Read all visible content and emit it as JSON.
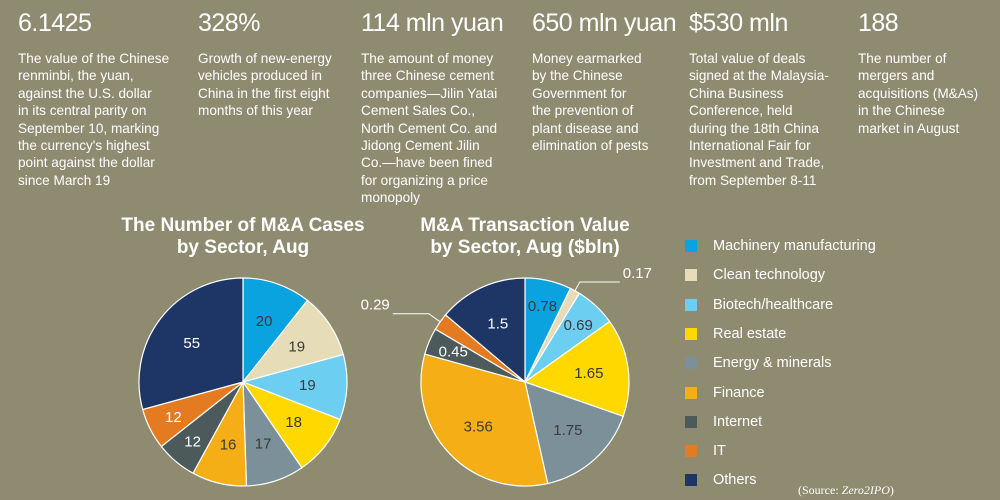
{
  "stats": [
    {
      "value": "6.1425",
      "desc": [
        "The value of the Chinese",
        "renminbi, the yuan,",
        "against the U.S. dollar",
        "in its central parity on",
        "September 10, marking",
        "the currency's highest",
        "point against the dollar",
        "since March 19"
      ]
    },
    {
      "value": "328%",
      "desc": [
        "Growth of new-energy",
        "vehicles produced in",
        "China in the first eight",
        "months of this year"
      ]
    },
    {
      "value": "114 mln yuan",
      "desc": [
        "The amount of money",
        "three Chinese cement",
        "companies—Jilin Yatai",
        "Cement Sales Co.,",
        "North Cement Co. and",
        "Jidong Cement Jilin",
        "Co.—have been fined",
        "for organizing a price",
        "monopoly"
      ]
    },
    {
      "value": "650 mln yuan",
      "desc": [
        "Money earmarked",
        "by the Chinese",
        "Government for",
        "the prevention of",
        "plant disease and",
        "elimination of pests"
      ]
    },
    {
      "value": "$530 mln",
      "desc": [
        "Total value of deals",
        "signed at the Malaysia-",
        "China Business",
        "Conference, held",
        "during the 18th China",
        "International Fair for",
        "Investment and Trade,",
        "from September 8-11"
      ]
    },
    {
      "value": "188",
      "desc": [
        "The number of",
        "mergers and",
        "acquisitions (M&As)",
        "in the Chinese",
        "market in August"
      ]
    }
  ],
  "colors": {
    "Machinery manufacturing": "#0aa3e0",
    "Clean technology": "#e6dcb8",
    "Biotech/healthcare": "#6ccff2",
    "Real estate": "#ffd800",
    "Energy & minerals": "#7b9098",
    "Finance": "#f6ae16",
    "Internet": "#4d5a5b",
    "IT": "#e57b20",
    "Others": "#1e3666"
  },
  "chart_data": [
    {
      "type": "pie",
      "title": [
        "The Number of M&A Cases",
        "by Sector, Aug"
      ],
      "categories": [
        "Machinery manufacturing",
        "Clean technology",
        "Biotech/healthcare",
        "Real estate",
        "Energy & minerals",
        "Finance",
        "Internet",
        "IT",
        "Others"
      ],
      "values": [
        20,
        19,
        19,
        18,
        17,
        16,
        12,
        12,
        55
      ],
      "labels": [
        "20",
        "19",
        "19",
        "18",
        "17",
        "16",
        "12",
        "12",
        "55"
      ]
    },
    {
      "type": "pie",
      "title": [
        "M&A Transaction Value",
        "by Sector, Aug ($bln)"
      ],
      "categories": [
        "Machinery manufacturing",
        "Clean technology",
        "Biotech/healthcare",
        "Real estate",
        "Energy & minerals",
        "Finance",
        "Internet",
        "IT",
        "Others"
      ],
      "values": [
        0.78,
        0.17,
        0.69,
        1.65,
        1.75,
        3.56,
        0.45,
        0.29,
        1.5
      ],
      "labels": [
        "0.78",
        "0.17",
        "0.69",
        "1.65",
        "1.75",
        "3.56",
        "0.45",
        "0.29",
        "1.5"
      ]
    }
  ],
  "legend": [
    "Machinery manufacturing",
    "Clean technology",
    "Biotech/healthcare",
    "Real estate",
    "Energy & minerals",
    "Finance",
    "Internet",
    "IT",
    "Others"
  ],
  "source": {
    "prefix": "(Source: ",
    "name": "Zero2IPO",
    "suffix": ")"
  }
}
